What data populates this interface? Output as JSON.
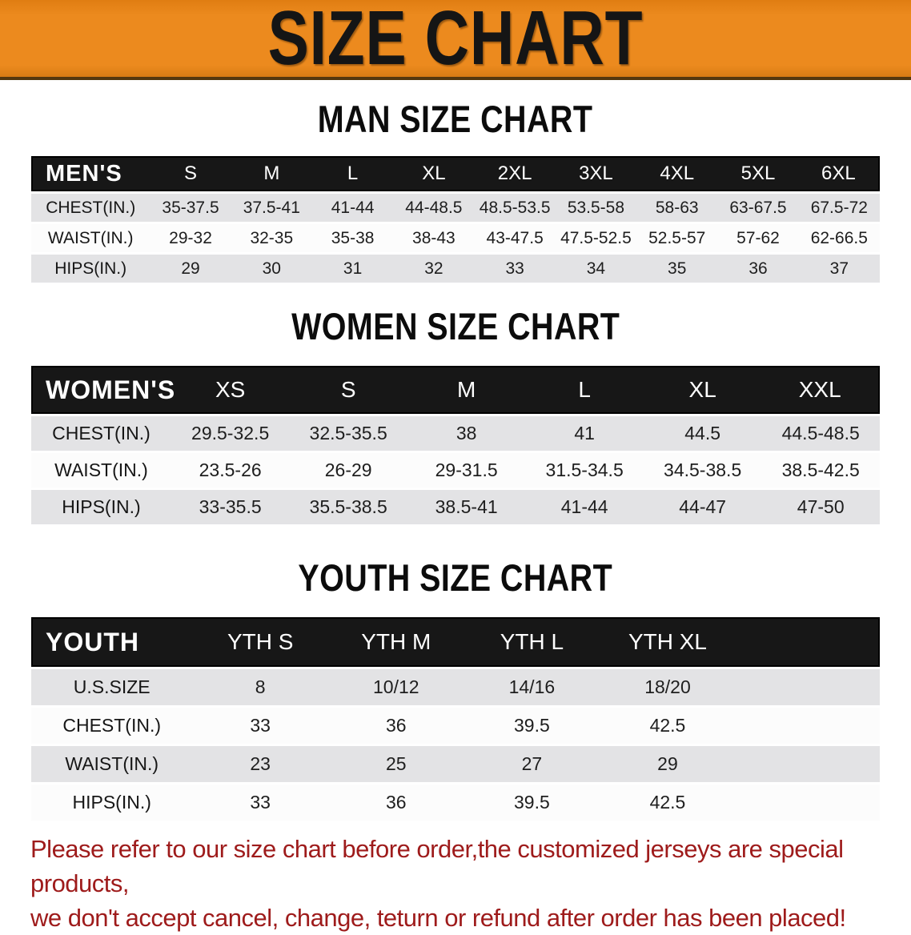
{
  "banner": {
    "title": "SIZE CHART",
    "bg_color": "#EC8A1E",
    "text_color": "#151515"
  },
  "sections": [
    {
      "id": "men",
      "heading": "MAN SIZE CHART",
      "group_label": "MEN'S",
      "columns": [
        "S",
        "M",
        "L",
        "XL",
        "2XL",
        "3XL",
        "4XL",
        "5XL",
        "6XL"
      ],
      "rows": [
        {
          "label": "CHEST(IN.)",
          "values": [
            "35-37.5",
            "37.5-41",
            "41-44",
            "44-48.5",
            "48.5-53.5",
            "53.5-58",
            "58-63",
            "63-67.5",
            "67.5-72"
          ]
        },
        {
          "label": "WAIST(IN.)",
          "values": [
            "29-32",
            "32-35",
            "35-38",
            "38-43",
            "43-47.5",
            "47.5-52.5",
            "52.5-57",
            "57-62",
            "62-66.5"
          ]
        },
        {
          "label": "HIPS(IN.)",
          "values": [
            "29",
            "30",
            "31",
            "32",
            "33",
            "34",
            "35",
            "36",
            "37"
          ]
        }
      ]
    },
    {
      "id": "women",
      "heading": "WOMEN SIZE CHART",
      "group_label": "WOMEN'S",
      "columns": [
        "XS",
        "S",
        "M",
        "L",
        "XL",
        "XXL"
      ],
      "rows": [
        {
          "label": "CHEST(IN.)",
          "values": [
            "29.5-32.5",
            "32.5-35.5",
            "38",
            "41",
            "44.5",
            "44.5-48.5"
          ]
        },
        {
          "label": "WAIST(IN.)",
          "values": [
            "23.5-26",
            "26-29",
            "29-31.5",
            "31.5-34.5",
            "34.5-38.5",
            "38.5-42.5"
          ]
        },
        {
          "label": "HIPS(IN.)",
          "values": [
            "33-35.5",
            "35.5-38.5",
            "38.5-41",
            "41-44",
            "44-47",
            "47-50"
          ]
        }
      ]
    },
    {
      "id": "youth",
      "heading": "YOUTH SIZE CHART",
      "group_label": "YOUTH",
      "columns": [
        "YTH S",
        "YTH M",
        "YTH L",
        "YTH XL"
      ],
      "rows": [
        {
          "label": "U.S.SIZE",
          "values": [
            "8",
            "10/12",
            "14/16",
            "18/20"
          ]
        },
        {
          "label": "CHEST(IN.)",
          "values": [
            "33",
            "36",
            "39.5",
            "42.5"
          ]
        },
        {
          "label": "WAIST(IN.)",
          "values": [
            "23",
            "25",
            "27",
            "29"
          ]
        },
        {
          "label": "HIPS(IN.)",
          "values": [
            "33",
            "36",
            "39.5",
            "42.5"
          ]
        }
      ]
    }
  ],
  "disclaimer": {
    "lines": [
      "Please refer to our size chart before order,the customized jerseys are special products,",
      "we don't accept cancel, change, teturn or refund after order has been placed!"
    ],
    "text_color": "#9E1B1B"
  },
  "colors": {
    "band_bg": "#171717",
    "row_shade": "#E3E3E5",
    "row_plain": "#FCFCFC"
  }
}
